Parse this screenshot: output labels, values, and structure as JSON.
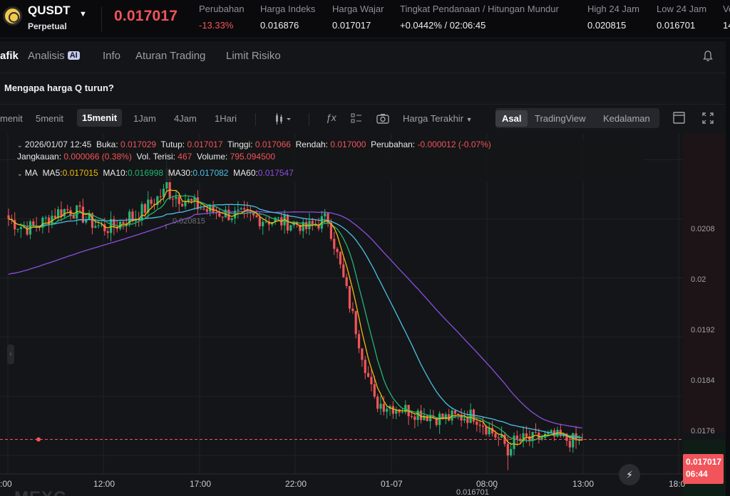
{
  "ticker": {
    "symbol": "QUSDT",
    "contract": "Perpetual",
    "last_price": "0.017017",
    "stats": [
      {
        "label": "Perubahan",
        "value": "-13.33%",
        "negative": true
      },
      {
        "label": "Harga Indeks",
        "value": "0.016876"
      },
      {
        "label": "Harga Wajar",
        "value": "0.017017"
      },
      {
        "label": "Tingkat Pendanaan / Hitungan Mundur",
        "value": "+0.0442% / 02:06:45"
      },
      {
        "label": "High 24 Jam",
        "value": "0.020815"
      },
      {
        "label": "Low 24 Jam",
        "value": "0.016701"
      },
      {
        "label": "Vo",
        "value": "14"
      }
    ]
  },
  "tabs": [
    "afik",
    "Analisis",
    "Info",
    "Aturan Trading",
    "Limit Risiko"
  ],
  "ai_badge": "AI",
  "notice": "Mengapa harga Q turun?",
  "intervals": [
    "menit",
    "5menit",
    "15menit",
    "1Jam",
    "4Jam",
    "1Hari"
  ],
  "active_interval": "15menit",
  "price_source": "Harga Terakhir",
  "chart_modes": [
    "Asal",
    "TradingView",
    "Kedalaman"
  ],
  "legend": {
    "datetime": "2026/01/07 12:45",
    "open_label": "Buka:",
    "open": "0.017029",
    "close_label": "Tutup:",
    "close": "0.017017",
    "high_label": "Tinggi:",
    "high": "0.017066",
    "low_label": "Rendah:",
    "low": "0.017000",
    "change_label": "Perubahan:",
    "change": "-0.000012 (-0.07%)",
    "range_label": "Jangkauan:",
    "range": "0.000066 (0.38%)",
    "filled_label": "Vol. Terisi:",
    "filled": "467",
    "volume_label": "Volume:",
    "volume": "795.094500",
    "ma_label": "MA",
    "ma": [
      {
        "name": "MA5:",
        "value": "0.017015",
        "color": "#f0b90b"
      },
      {
        "name": "MA10:",
        "value": "0.016998",
        "color": "#22b573"
      },
      {
        "name": "MA30:",
        "value": "0.017082",
        "color": "#4cc0e8"
      },
      {
        "name": "MA60:",
        "value": "0.017547",
        "color": "#8a4fe0"
      }
    ]
  },
  "price_tag": {
    "price": "0.017017",
    "countdown": "06:44"
  },
  "high_marker": "0.020815",
  "low_marker": "0.016701",
  "watermark": "MEXC",
  "chart_data": {
    "type": "line",
    "title": "",
    "x_ticks": [
      ":00",
      "12:00",
      "17:00",
      "22:00",
      "01-07",
      "08:00",
      "13:00",
      "18:0"
    ],
    "y_ticks": [
      "0.0208",
      "0.02",
      "0.0192",
      "0.0184",
      "0.0176"
    ],
    "ylim": [
      0.01655,
      0.02115
    ],
    "series": [
      {
        "name": "MA5",
        "color": "#f0b90b"
      },
      {
        "name": "MA10",
        "color": "#22b573"
      },
      {
        "name": "MA30",
        "color": "#4cc0e8"
      },
      {
        "name": "MA60",
        "color": "#8a4fe0"
      }
    ],
    "up_color": "#22b573",
    "down_color": "#f2545b"
  }
}
